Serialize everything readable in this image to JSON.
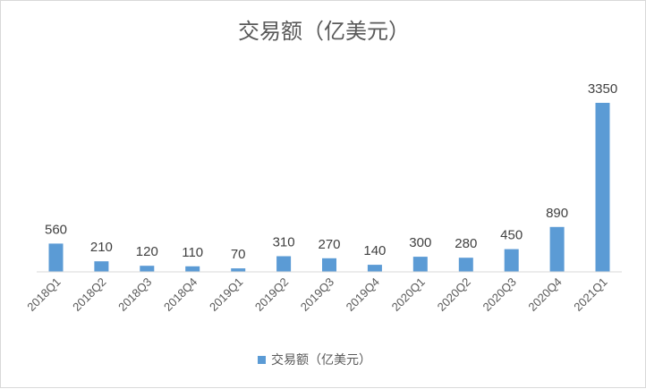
{
  "chart_data": {
    "type": "bar",
    "title": "交易额（亿美元）",
    "categories": [
      "2018Q1",
      "2018Q2",
      "2018Q3",
      "2018Q4",
      "2019Q1",
      "2019Q2",
      "2019Q3",
      "2019Q4",
      "2020Q1",
      "2020Q2",
      "2020Q3",
      "2020Q4",
      "2021Q1"
    ],
    "series": [
      {
        "name": "交易额（亿美元）",
        "values": [
          560,
          210,
          120,
          110,
          70,
          310,
          270,
          140,
          300,
          280,
          450,
          890,
          3350
        ],
        "color": "#5b9bd5"
      }
    ],
    "ylim": [
      0,
      3350
    ],
    "grid": false,
    "legend_position": "bottom",
    "data_labels": true
  }
}
